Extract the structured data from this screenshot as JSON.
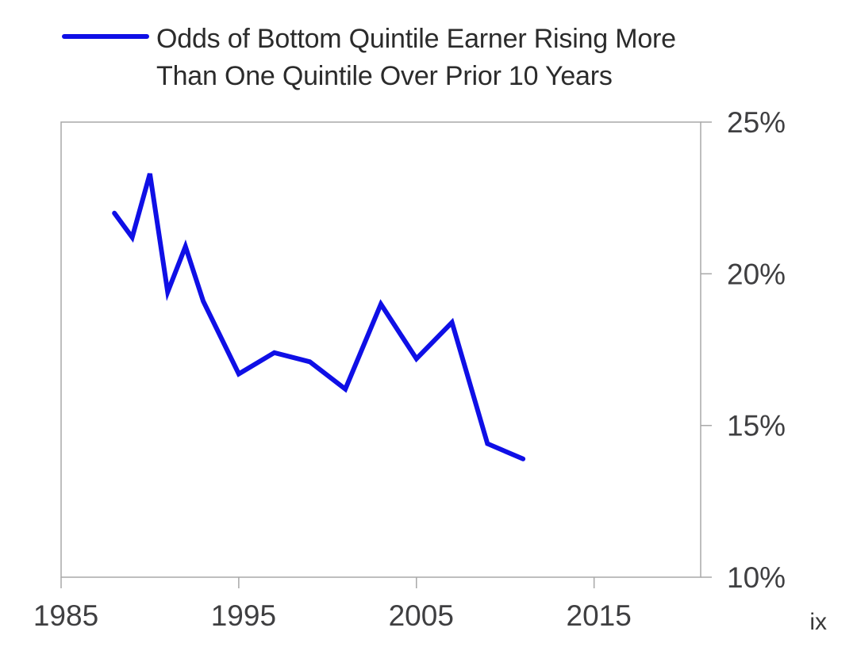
{
  "figure": {
    "legend": {
      "label_line1": "Odds of Bottom Quintile Earner Rising More",
      "label_line2": "Than One Quintile Over Prior 10 Years"
    },
    "footnote": "ix"
  },
  "colors": {
    "line": "#0f0fe6",
    "axis": "#a8a8a8",
    "tick_label": "#3f3f41",
    "title_text": "#2b2b2b",
    "footnote_text": "#3a3a3a",
    "background": "#ffffff"
  },
  "chart_data": {
    "type": "line",
    "title": "Odds of Bottom Quintile Earner Rising More Than One Quintile Over Prior 10 Years",
    "series": [
      {
        "name": "Odds of Bottom Quintile Earner Rising More Than One Quintile Over Prior 10 Years",
        "x": [
          1988,
          1989,
          1990,
          1991,
          1992,
          1993,
          1995,
          1997,
          1999,
          2001,
          2003,
          2005,
          2007,
          2009,
          2011
        ],
        "values": [
          22.0,
          21.2,
          23.3,
          19.4,
          20.9,
          19.1,
          16.7,
          17.4,
          17.1,
          16.2,
          19.0,
          17.2,
          18.4,
          14.4,
          13.9
        ]
      }
    ],
    "xlabel": "",
    "ylabel": "",
    "xlim": [
      1985,
      2021
    ],
    "ylim": [
      10,
      25
    ],
    "x_ticks": [
      1985,
      1995,
      2005,
      2015
    ],
    "y_ticks": [
      10,
      15,
      20,
      25
    ],
    "y_tick_suffix": "%",
    "y_axis_side": "right",
    "grid": false,
    "legend_position": "top-left"
  }
}
